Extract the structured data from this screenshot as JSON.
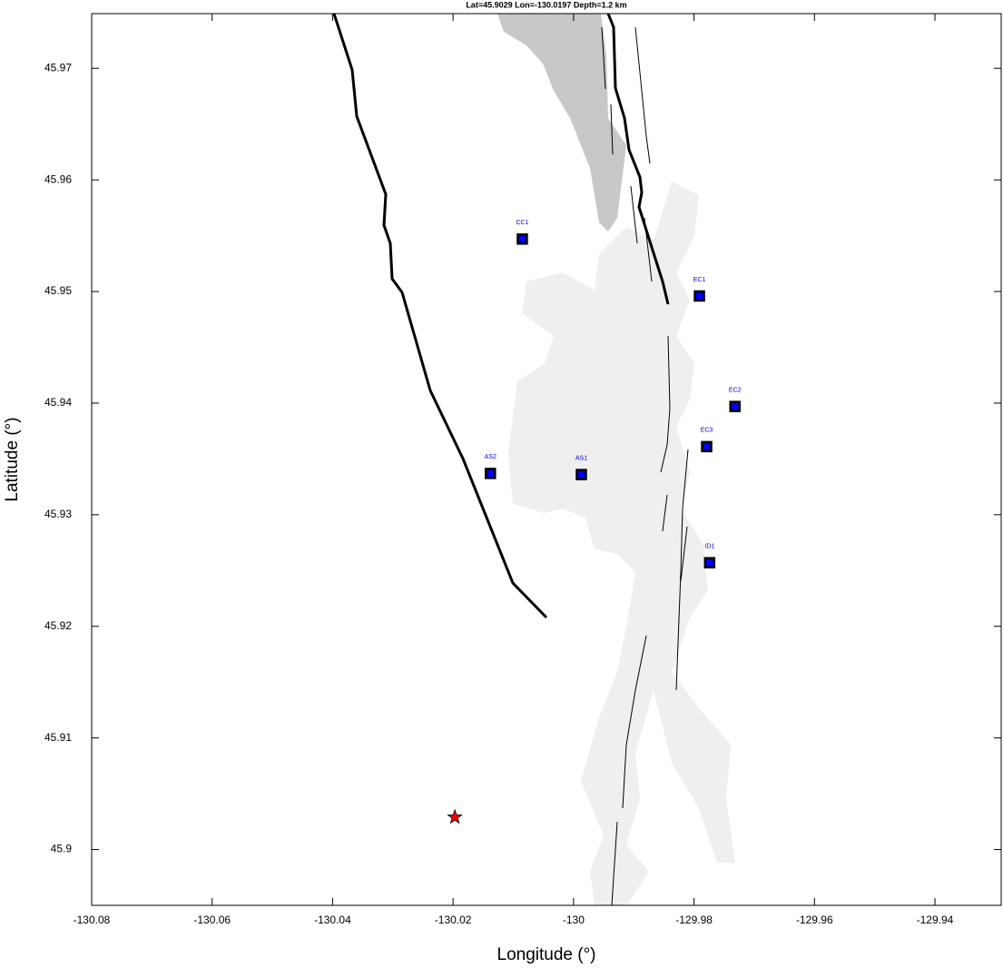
{
  "chart_data": {
    "type": "map",
    "title": "Lat=45.9029  Lon=-130.0197  Depth=1.2 km",
    "x_label": "Longitude (°)",
    "y_label": "Latitude (°)",
    "xlim": [
      -130.08,
      -129.929
    ],
    "ylim": [
      45.895,
      45.9749
    ],
    "xticks": [
      -130.08,
      -130.06,
      -130.04,
      -130.02,
      -130,
      -129.98,
      -129.96,
      -129.94
    ],
    "yticks": [
      45.9,
      45.91,
      45.92,
      45.93,
      45.94,
      45.95,
      45.96,
      45.97
    ],
    "stations": {
      "color": "#0000ff",
      "labels": [
        "CC1",
        "EC1",
        "EC2",
        "EC3",
        "AS2",
        "AS1",
        "ID1"
      ],
      "x": [
        -130.0085,
        -129.9791,
        -129.9732,
        -129.9779,
        -130.0138,
        -129.9987,
        -129.9774
      ],
      "y": [
        45.9547,
        45.9496,
        45.9397,
        45.9361,
        45.9337,
        45.9336,
        45.9257
      ]
    },
    "event": {
      "color": "#ff0000",
      "x": -130.0197,
      "y": 45.9029
    }
  }
}
